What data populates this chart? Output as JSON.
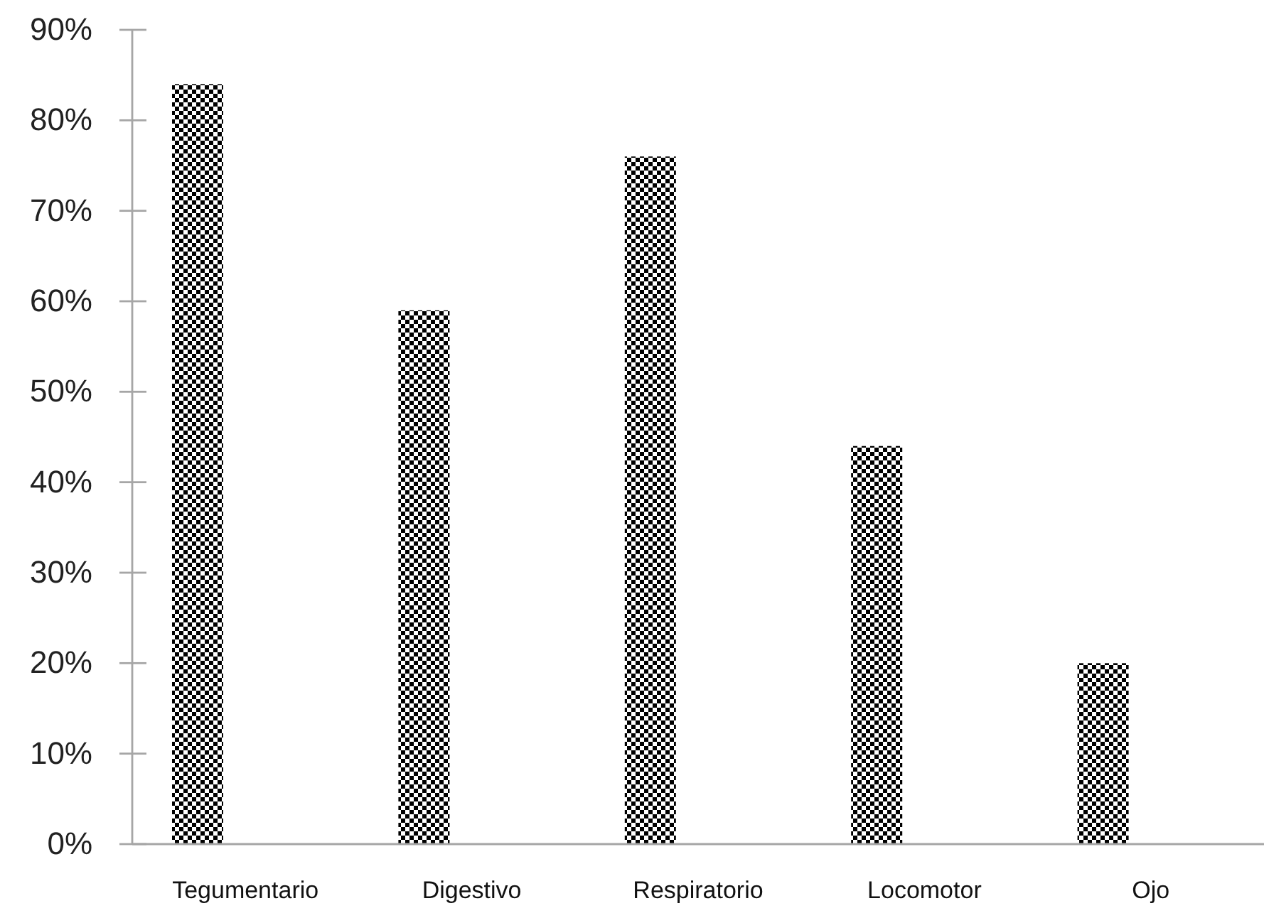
{
  "chart_data": {
    "type": "bar",
    "categories": [
      "Tegumentario",
      "Digestivo",
      "Respiratorio",
      "Locomotor",
      "Ojo"
    ],
    "values": [
      84,
      59,
      76,
      44,
      20
    ],
    "color": "#000000",
    "ylim": [
      0,
      90
    ],
    "yticks": [
      {
        "value": 0,
        "label": "0%"
      },
      {
        "value": 10,
        "label": "10%"
      },
      {
        "value": 20,
        "label": "20%"
      },
      {
        "value": 30,
        "label": "30%"
      },
      {
        "value": 40,
        "label": "40%"
      },
      {
        "value": 50,
        "label": "50%"
      },
      {
        "value": 60,
        "label": "60%"
      },
      {
        "value": 70,
        "label": "70%"
      },
      {
        "value": 80,
        "label": "80%"
      },
      {
        "value": 90,
        "label": "90%"
      }
    ],
    "grid": false
  }
}
